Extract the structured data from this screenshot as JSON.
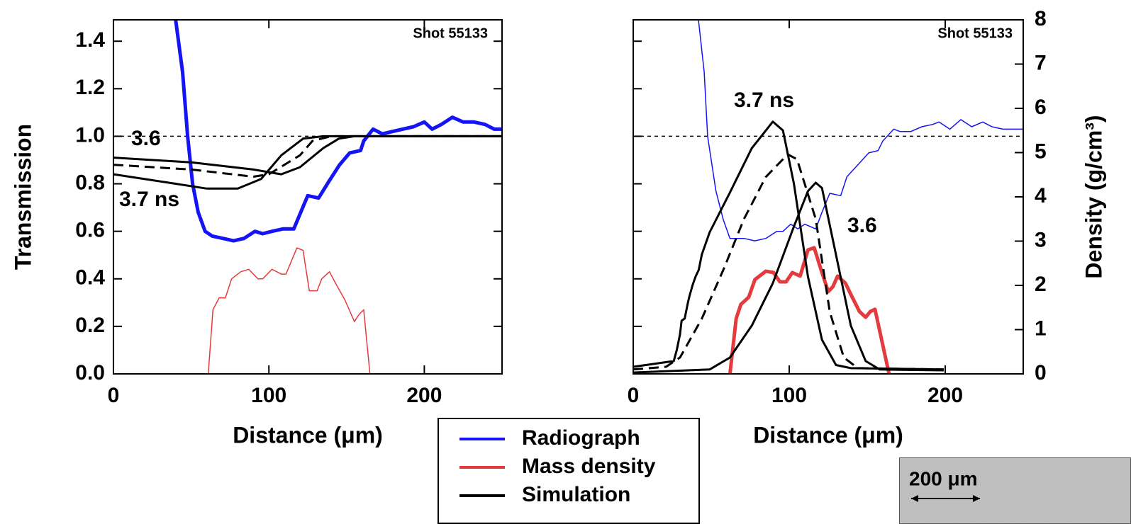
{
  "chart_data": [
    {
      "type": "line",
      "xlabel": "Distance (μm)",
      "ylabel": "Transmission",
      "xlim": [
        0,
        250
      ],
      "xticks": [
        0,
        100,
        200
      ],
      "ylim": [
        0,
        1.49
      ],
      "yticks": [
        {
          "value": 0,
          "label": "0.0"
        },
        0.2,
        0.4,
        0.6,
        0.8,
        {
          "value": 1,
          "label": "1.0"
        },
        1.2,
        1.4
      ],
      "hline": 1,
      "annotations": [
        "Shot 55133",
        "3.6",
        "3.7 ns"
      ],
      "series": [
        {
          "name": "Radiograph",
          "color": "#1414f5",
          "linewidth": 5,
          "x": [
            40,
            44.5,
            47.7,
            50.9,
            54.5,
            59,
            63.6,
            70.5,
            77.3,
            84,
            91,
            96,
            102,
            109,
            116,
            120.5,
            125,
            132,
            138.6,
            145.5,
            152,
            159,
            161,
            167,
            173,
            179.5,
            186,
            193,
            200,
            205,
            211,
            218,
            225,
            232,
            239,
            245,
            250
          ],
          "values": [
            1.49,
            1.27,
            1.0,
            0.8,
            0.68,
            0.6,
            0.58,
            0.57,
            0.56,
            0.57,
            0.6,
            0.59,
            0.6,
            0.61,
            0.61,
            0.68,
            0.75,
            0.74,
            0.81,
            0.88,
            0.93,
            0.94,
            0.98,
            1.03,
            1.01,
            1.02,
            1.03,
            1.04,
            1.06,
            1.03,
            1.05,
            1.08,
            1.06,
            1.06,
            1.05,
            1.03,
            1.03
          ]
        },
        {
          "name": "Mass density",
          "color": "#e33b3e",
          "linewidth": 1.5,
          "x": [
            61,
            64,
            68,
            72,
            76,
            82,
            87,
            93,
            96,
            102,
            108,
            111,
            118,
            122,
            126,
            131,
            134,
            139,
            143,
            149,
            155,
            158,
            161,
            165
          ],
          "values": [
            0,
            0.27,
            0.32,
            0.32,
            0.4,
            0.43,
            0.44,
            0.4,
            0.4,
            0.44,
            0.42,
            0.42,
            0.53,
            0.52,
            0.35,
            0.35,
            0.4,
            0.43,
            0.38,
            0.31,
            0.22,
            0.25,
            0.27,
            0
          ]
        },
        {
          "name": "Simulation",
          "color": "#000000",
          "linewidth": 3,
          "x": [
            0,
            50,
            90,
            108,
            120,
            135,
            145,
            155,
            250
          ],
          "values": [
            0.91,
            0.89,
            0.86,
            0.84,
            0.87,
            0.95,
            0.99,
            1.0,
            1.0
          ]
        },
        {
          "color": "#000000",
          "linewidth": 3,
          "dash": true,
          "x": [
            0,
            50,
            90,
            100,
            120,
            128,
            140,
            250
          ],
          "values": [
            0.88,
            0.86,
            0.83,
            0.84,
            0.92,
            0.98,
            1.0,
            1.0
          ]
        },
        {
          "color": "#000000",
          "linewidth": 3,
          "x": [
            0,
            40,
            60,
            80,
            95,
            108,
            122,
            135,
            250
          ],
          "values": [
            0.84,
            0.8,
            0.78,
            0.78,
            0.82,
            0.92,
            0.99,
            1.0,
            1.0
          ]
        }
      ]
    },
    {
      "type": "line",
      "xlabel": "Distance (μm)",
      "y2label": "Density (g/cm³)",
      "xlim": [
        0,
        250
      ],
      "xticks": [
        0,
        100,
        200
      ],
      "ylim": [
        0,
        1.49
      ],
      "yticks": [
        0,
        0.2,
        0.4,
        0.6,
        0.8,
        1,
        1.2,
        1.4
      ],
      "ytick_labels": false,
      "y2lim": [
        0,
        8
      ],
      "y2ticks": [
        0,
        1,
        2,
        3,
        4,
        5,
        6,
        7,
        8
      ],
      "hline": 1,
      "annotations": [
        "Shot 55133",
        "3.7 ns",
        "3.6"
      ],
      "series": [
        {
          "color": "#1414f5",
          "linewidth": 1.5,
          "x": [
            41.8,
            45.5,
            47.7,
            53,
            57.7,
            62,
            71,
            78,
            85,
            92,
            96,
            101,
            105.5,
            110,
            117,
            121,
            126,
            133,
            137,
            144,
            151,
            157,
            160,
            167,
            171,
            178,
            185,
            192,
            196,
            203,
            210,
            217,
            224,
            230,
            237,
            250
          ],
          "values": [
            1.49,
            1.27,
            1.0,
            0.77,
            0.65,
            0.57,
            0.57,
            0.56,
            0.57,
            0.6,
            0.6,
            0.63,
            0.61,
            0.63,
            0.61,
            0.68,
            0.76,
            0.75,
            0.83,
            0.88,
            0.93,
            0.94,
            0.98,
            1.03,
            1.02,
            1.02,
            1.04,
            1.05,
            1.06,
            1.03,
            1.07,
            1.04,
            1.06,
            1.04,
            1.03,
            1.03
          ]
        },
        {
          "color": "#e33b3e",
          "linewidth": 5,
          "axis": "y2",
          "x": [
            62,
            66,
            69,
            74,
            78,
            85,
            90,
            94,
            98,
            102,
            107,
            112,
            116,
            120,
            125,
            128,
            131,
            136,
            140,
            145,
            149,
            152,
            155,
            164
          ],
          "values": [
            0,
            1.25,
            1.57,
            1.73,
            2.13,
            2.32,
            2.29,
            2.08,
            2.08,
            2.29,
            2.21,
            2.8,
            2.85,
            2.4,
            1.86,
            1.97,
            2.21,
            2.05,
            1.76,
            1.41,
            1.28,
            1.41,
            1.46,
            0
          ]
        },
        {
          "color": "#000000",
          "linewidth": 3,
          "axis": "y2",
          "x": [
            0,
            26,
            28,
            30,
            31,
            33,
            35,
            36,
            38,
            40,
            42,
            44,
            49,
            62,
            76,
            89.5,
            96,
            103,
            112,
            121,
            130,
            139.5,
            199
          ],
          "values": [
            0.16,
            0.29,
            0.55,
            0.9,
            1.2,
            1.25,
            1.6,
            1.75,
            2.0,
            2.2,
            2.35,
            2.7,
            3.2,
            4.1,
            5.1,
            5.7,
            5.5,
            4.3,
            2.2,
            0.77,
            0.2,
            0.13,
            0.1
          ]
        },
        {
          "color": "#000000",
          "linewidth": 3,
          "dash": true,
          "axis": "y2",
          "x": [
            0,
            21,
            30,
            44,
            58,
            71,
            85,
            99,
            105,
            117,
            126,
            135,
            144,
            199
          ],
          "values": [
            0.1,
            0.16,
            0.37,
            1.25,
            2.37,
            3.5,
            4.45,
            4.96,
            4.85,
            3.5,
            1.4,
            0.37,
            0.13,
            0.1
          ]
        },
        {
          "color": "#000000",
          "linewidth": 3,
          "axis": "y2",
          "x": [
            0,
            49,
            62,
            76,
            89.5,
            103,
            112,
            117,
            121,
            130,
            139.5,
            149,
            158,
            199
          ],
          "values": [
            0.03,
            0.1,
            0.37,
            1.09,
            2.05,
            3.33,
            4.13,
            4.32,
            4.2,
            2.69,
            1.09,
            0.29,
            0.1,
            0.08
          ]
        }
      ]
    }
  ],
  "inset": {
    "label": "200 μm"
  }
}
